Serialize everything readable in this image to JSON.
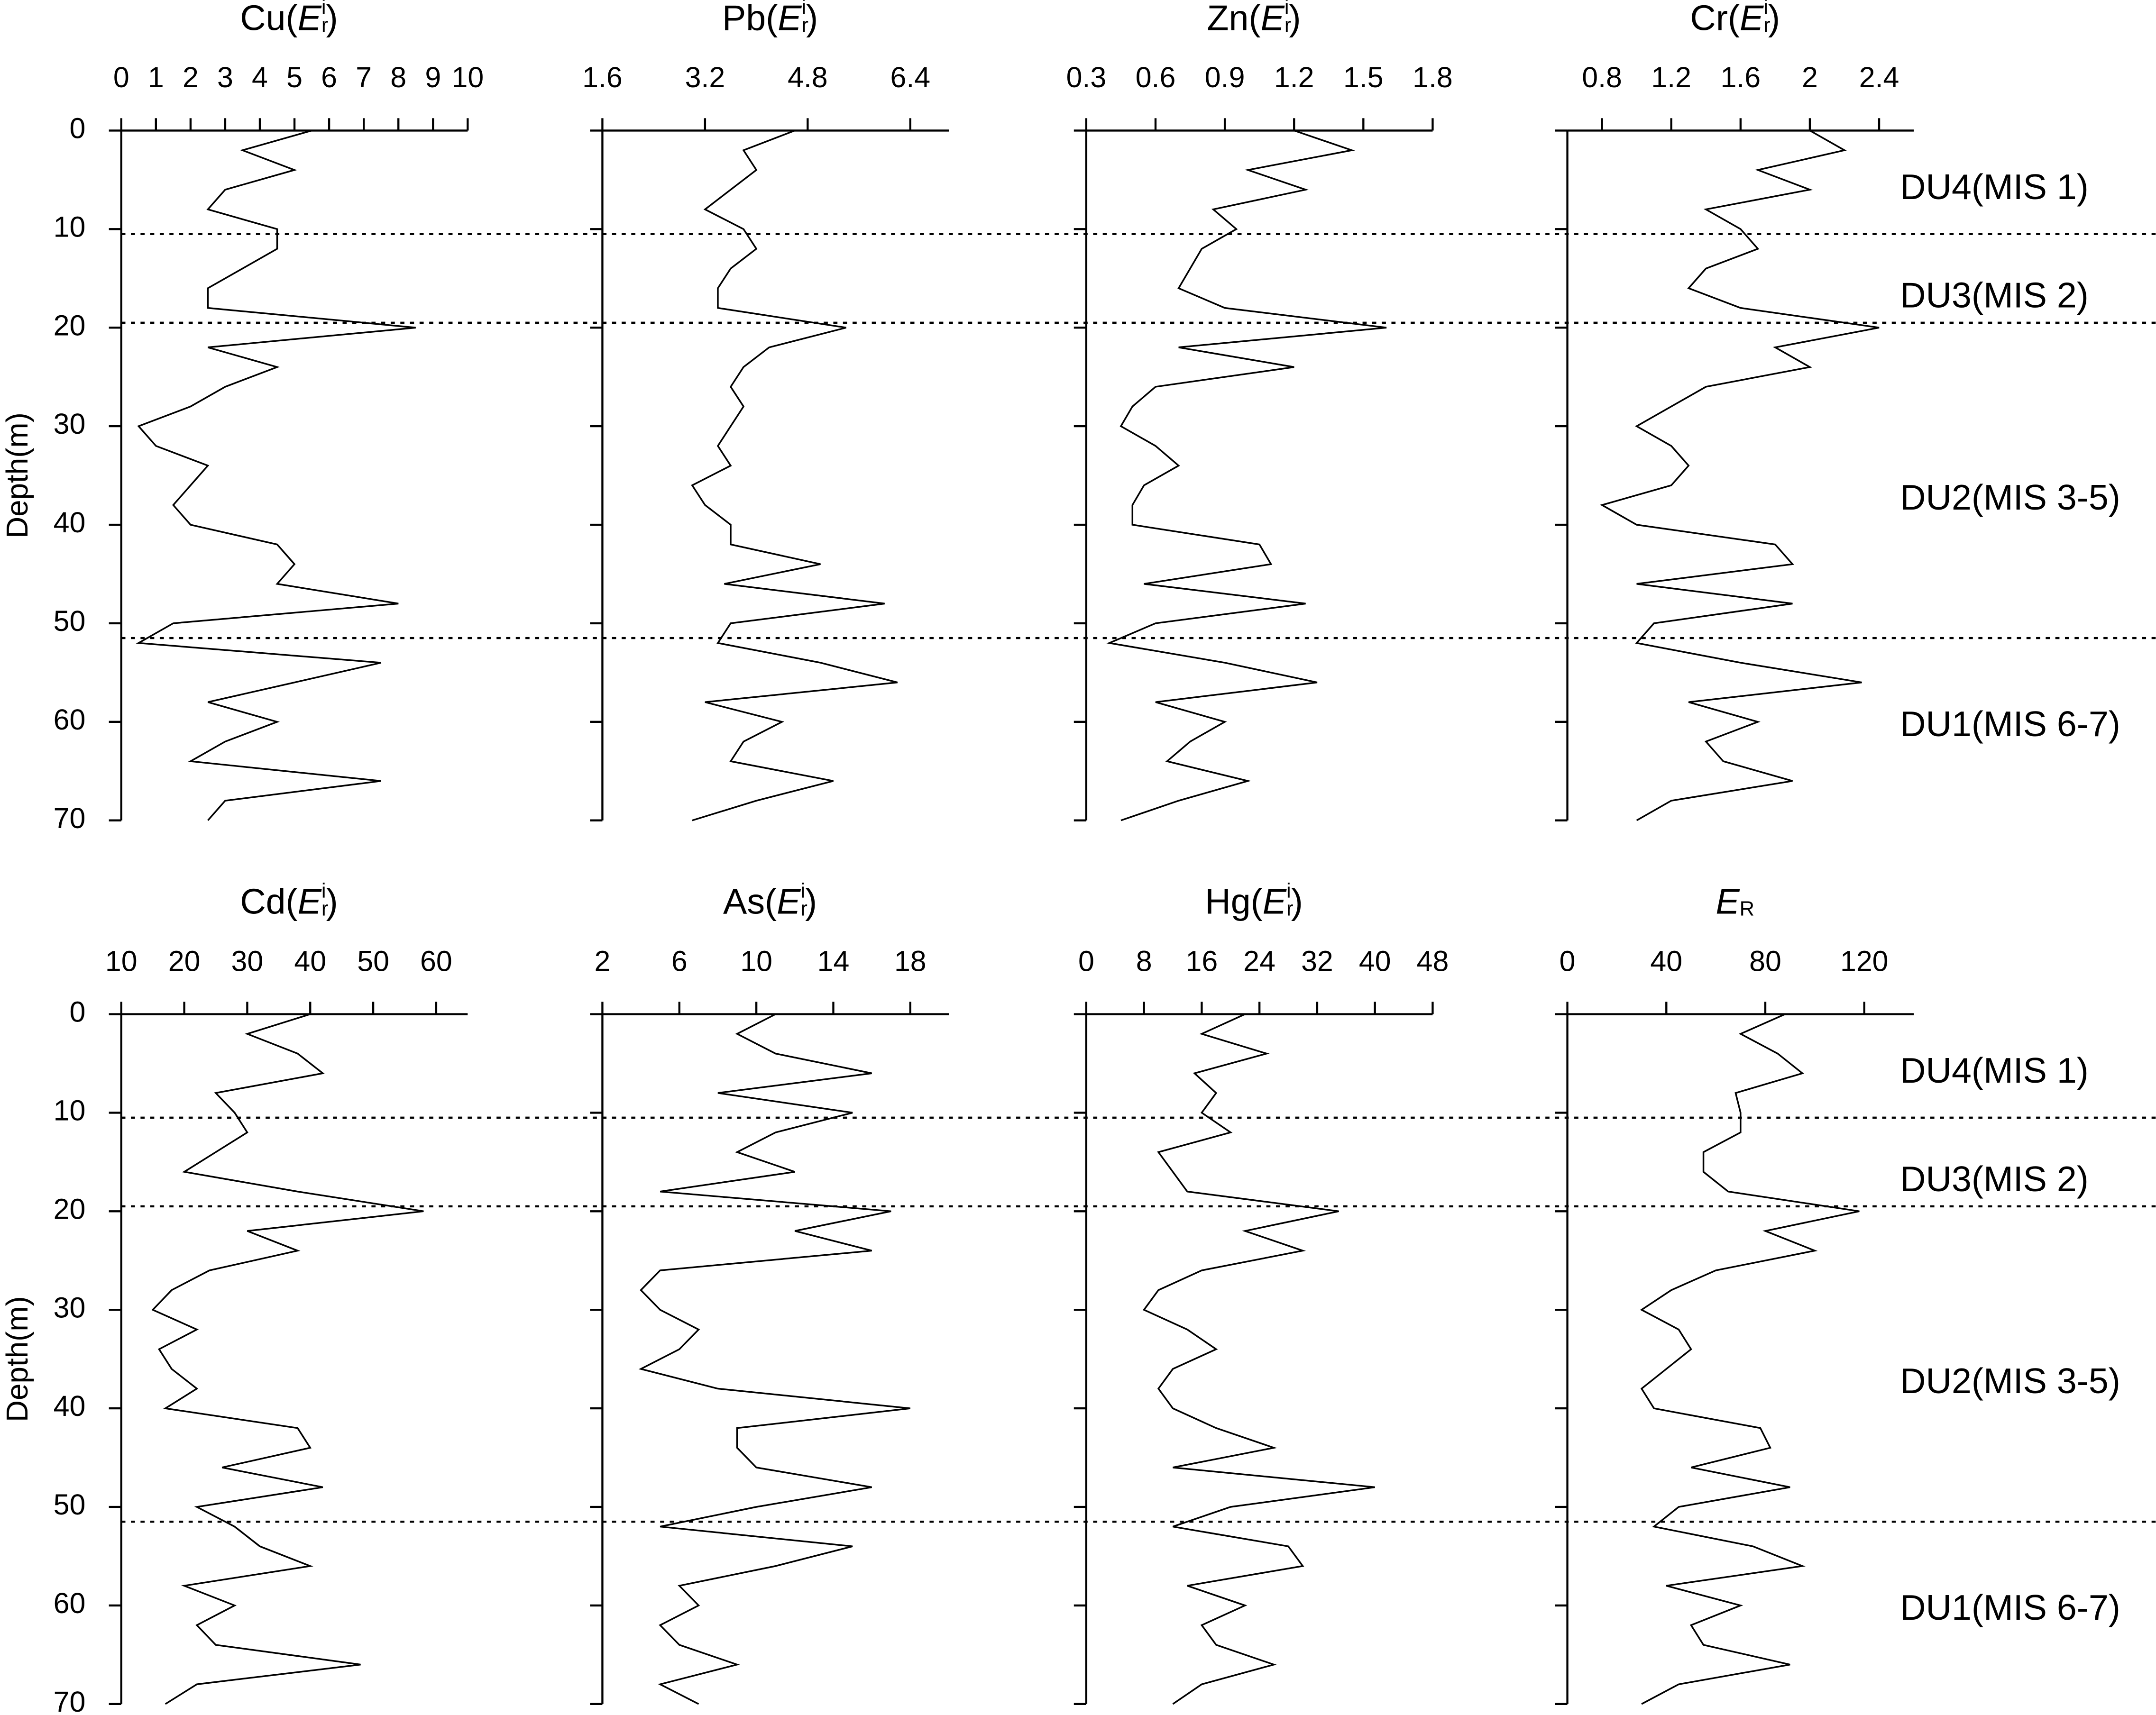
{
  "chart_data": [
    {
      "type": "line",
      "title": [
        {
          "text": "Cu(",
          "style": "normal"
        },
        {
          "text": "E",
          "style": "italic"
        },
        {
          "text": "r",
          "style": "sub"
        },
        {
          "text": "i",
          "style": "sup"
        },
        {
          "text": ")",
          "style": "normal"
        }
      ],
      "xlim": [
        0,
        10
      ],
      "xticks": [
        0,
        1,
        2,
        3,
        4,
        5,
        6,
        7,
        8,
        9,
        10
      ],
      "depth": [
        0,
        2,
        4,
        6,
        8,
        10,
        12,
        14,
        16,
        18,
        20,
        22,
        24,
        26,
        28,
        30,
        32,
        34,
        36,
        38,
        40,
        42,
        44,
        46,
        48,
        50,
        52,
        54,
        56,
        58,
        60,
        62,
        64,
        66,
        68,
        70
      ],
      "values": [
        5.5,
        3.5,
        5,
        3,
        2.5,
        4.5,
        4.5,
        3.5,
        2.5,
        2.5,
        8.5,
        2.5,
        4.5,
        3,
        2,
        0.5,
        1,
        2.5,
        2,
        1.5,
        2,
        4.5,
        5,
        4.5,
        8,
        1.5,
        0.5,
        7.5,
        5,
        2.5,
        4.5,
        3,
        2,
        7.5,
        3,
        2.5
      ]
    },
    {
      "type": "line",
      "title": [
        {
          "text": "Pb(",
          "style": "normal"
        },
        {
          "text": "E",
          "style": "italic"
        },
        {
          "text": "r",
          "style": "sub"
        },
        {
          "text": "i",
          "style": "sup"
        },
        {
          "text": ")",
          "style": "normal"
        }
      ],
      "xlim": [
        1.6,
        7.0
      ],
      "xticks": [
        1.6,
        3.2,
        4.8,
        6.4
      ],
      "depth": [
        0,
        2,
        4,
        6,
        8,
        10,
        12,
        14,
        16,
        18,
        20,
        22,
        24,
        26,
        28,
        30,
        32,
        34,
        36,
        38,
        40,
        42,
        44,
        46,
        48,
        50,
        52,
        54,
        56,
        58,
        60,
        62,
        64,
        66,
        68,
        70
      ],
      "values": [
        4.6,
        3.8,
        4.0,
        3.6,
        3.2,
        3.8,
        4.0,
        3.6,
        3.4,
        3.4,
        5.4,
        4.2,
        3.8,
        3.6,
        3.8,
        3.6,
        3.4,
        3.6,
        3.0,
        3.2,
        3.6,
        3.6,
        5.0,
        3.5,
        6.0,
        3.6,
        3.4,
        5.0,
        6.2,
        3.2,
        4.4,
        3.8,
        3.6,
        5.2,
        4.0,
        3.0
      ]
    },
    {
      "type": "line",
      "title": [
        {
          "text": "Zn(",
          "style": "normal"
        },
        {
          "text": "E",
          "style": "italic"
        },
        {
          "text": "r",
          "style": "sub"
        },
        {
          "text": "i",
          "style": "sup"
        },
        {
          "text": ")",
          "style": "normal"
        }
      ],
      "xlim": [
        0.3,
        1.8
      ],
      "xticks": [
        0.3,
        0.6,
        0.9,
        1.2,
        1.5,
        1.8
      ],
      "depth": [
        0,
        2,
        4,
        6,
        8,
        10,
        12,
        14,
        16,
        18,
        20,
        22,
        24,
        26,
        28,
        30,
        32,
        34,
        36,
        38,
        40,
        42,
        44,
        46,
        48,
        50,
        52,
        54,
        56,
        58,
        60,
        62,
        64,
        66,
        68,
        70
      ],
      "values": [
        1.2,
        1.45,
        1.0,
        1.25,
        0.85,
        0.95,
        0.8,
        0.75,
        0.7,
        0.9,
        1.6,
        0.7,
        1.2,
        0.6,
        0.5,
        0.45,
        0.6,
        0.7,
        0.55,
        0.5,
        0.5,
        1.05,
        1.1,
        0.55,
        1.25,
        0.6,
        0.4,
        0.9,
        1.3,
        0.6,
        0.9,
        0.75,
        0.65,
        1.0,
        0.7,
        0.45
      ]
    },
    {
      "type": "line",
      "title": [
        {
          "text": "Cr(",
          "style": "normal"
        },
        {
          "text": "E",
          "style": "italic"
        },
        {
          "text": "r",
          "style": "sub"
        },
        {
          "text": "i",
          "style": "sup"
        },
        {
          "text": ")",
          "style": "normal"
        }
      ],
      "xlim": [
        0.6,
        2.6
      ],
      "xticks": [
        0.8,
        1.2,
        1.6,
        2,
        2.4
      ],
      "depth": [
        0,
        2,
        4,
        6,
        8,
        10,
        12,
        14,
        16,
        18,
        20,
        22,
        24,
        26,
        28,
        30,
        32,
        34,
        36,
        38,
        40,
        42,
        44,
        46,
        48,
        50,
        52,
        54,
        56,
        58,
        60,
        62,
        64,
        66,
        68,
        70
      ],
      "values": [
        2.0,
        2.2,
        1.7,
        2.0,
        1.4,
        1.6,
        1.7,
        1.4,
        1.3,
        1.6,
        2.4,
        1.8,
        2.0,
        1.4,
        1.2,
        1.0,
        1.2,
        1.3,
        1.2,
        0.8,
        1.0,
        1.8,
        1.9,
        1.0,
        1.9,
        1.1,
        1.0,
        1.6,
        2.3,
        1.3,
        1.7,
        1.4,
        1.5,
        1.9,
        1.2,
        1.0
      ]
    },
    {
      "type": "line",
      "title": [
        {
          "text": "Cd(",
          "style": "normal"
        },
        {
          "text": "E",
          "style": "italic"
        },
        {
          "text": "r",
          "style": "sub"
        },
        {
          "text": "i",
          "style": "sup"
        },
        {
          "text": ")",
          "style": "normal"
        }
      ],
      "xlim": [
        10,
        65
      ],
      "xticks": [
        10,
        20,
        30,
        40,
        50,
        60
      ],
      "depth": [
        0,
        2,
        4,
        6,
        8,
        10,
        12,
        14,
        16,
        18,
        20,
        22,
        24,
        26,
        28,
        30,
        32,
        34,
        36,
        38,
        40,
        42,
        44,
        46,
        48,
        50,
        52,
        54,
        56,
        58,
        60,
        62,
        64,
        66,
        68,
        70
      ],
      "values": [
        40,
        30,
        38,
        42,
        25,
        28,
        30,
        25,
        20,
        38,
        58,
        30,
        38,
        24,
        18,
        15,
        22,
        16,
        18,
        22,
        17,
        38,
        40,
        26,
        42,
        22,
        28,
        32,
        40,
        20,
        28,
        22,
        25,
        48,
        22,
        17
      ]
    },
    {
      "type": "line",
      "title": [
        {
          "text": "As(",
          "style": "normal"
        },
        {
          "text": "E",
          "style": "italic"
        },
        {
          "text": "r",
          "style": "sub"
        },
        {
          "text": "i",
          "style": "sup"
        },
        {
          "text": ")",
          "style": "normal"
        }
      ],
      "xlim": [
        2,
        20
      ],
      "xticks": [
        2,
        6,
        10,
        14,
        18
      ],
      "depth": [
        0,
        2,
        4,
        6,
        8,
        10,
        12,
        14,
        16,
        18,
        20,
        22,
        24,
        26,
        28,
        30,
        32,
        34,
        36,
        38,
        40,
        42,
        44,
        46,
        48,
        50,
        52,
        54,
        56,
        58,
        60,
        62,
        64,
        66,
        68,
        70
      ],
      "values": [
        11,
        9,
        11,
        16,
        8,
        15,
        11,
        9,
        12,
        5,
        17,
        12,
        16,
        5,
        4,
        5,
        7,
        6,
        4,
        8,
        18,
        9,
        9,
        10,
        16,
        10,
        5,
        15,
        11,
        6,
        7,
        5,
        6,
        9,
        5,
        7
      ]
    },
    {
      "type": "line",
      "title": [
        {
          "text": "Hg(",
          "style": "normal"
        },
        {
          "text": "E",
          "style": "italic"
        },
        {
          "text": "r",
          "style": "sub"
        },
        {
          "text": "i",
          "style": "sup"
        },
        {
          "text": ")",
          "style": "normal"
        }
      ],
      "xlim": [
        0,
        48
      ],
      "xticks": [
        0,
        8,
        16,
        24,
        32,
        40,
        48
      ],
      "depth": [
        0,
        2,
        4,
        6,
        8,
        10,
        12,
        14,
        16,
        18,
        20,
        22,
        24,
        26,
        28,
        30,
        32,
        34,
        36,
        38,
        40,
        42,
        44,
        46,
        48,
        50,
        52,
        54,
        56,
        58,
        60,
        62,
        64,
        66,
        68,
        70
      ],
      "values": [
        22,
        16,
        25,
        15,
        18,
        16,
        20,
        10,
        12,
        14,
        35,
        22,
        30,
        16,
        10,
        8,
        14,
        18,
        12,
        10,
        12,
        18,
        26,
        12,
        40,
        20,
        12,
        28,
        30,
        14,
        22,
        16,
        18,
        26,
        16,
        12
      ]
    },
    {
      "type": "line",
      "title": [
        {
          "text": "E",
          "style": "italic"
        },
        {
          "text": "R",
          "style": "sub"
        }
      ],
      "xlim": [
        0,
        140
      ],
      "xticks": [
        0,
        40,
        80,
        120
      ],
      "depth": [
        0,
        2,
        4,
        6,
        8,
        10,
        12,
        14,
        16,
        18,
        20,
        22,
        24,
        26,
        28,
        30,
        32,
        34,
        36,
        38,
        40,
        42,
        44,
        46,
        48,
        50,
        52,
        54,
        56,
        58,
        60,
        62,
        64,
        66,
        68,
        70
      ],
      "values": [
        88,
        70,
        85,
        95,
        68,
        70,
        70,
        55,
        55,
        65,
        118,
        80,
        100,
        60,
        42,
        30,
        45,
        50,
        40,
        30,
        35,
        78,
        82,
        50,
        90,
        45,
        35,
        75,
        95,
        40,
        70,
        50,
        55,
        90,
        45,
        30
      ]
    }
  ],
  "depth_axis": {
    "label": "Depth(m)",
    "ylim": [
      0,
      70
    ],
    "yticks": [
      0,
      10,
      20,
      30,
      40,
      50,
      60,
      70
    ]
  },
  "boundaries": [
    10.5,
    19.5,
    51.5
  ],
  "units": [
    {
      "label": "DU4(MIS 1)",
      "depth": 6
    },
    {
      "label": "DU3(MIS 2)",
      "depth": 17
    },
    {
      "label": "DU2(MIS 3-5)",
      "depth": 37.5
    },
    {
      "label": "DU1(MIS 6-7)",
      "depth": 60.5
    }
  ]
}
